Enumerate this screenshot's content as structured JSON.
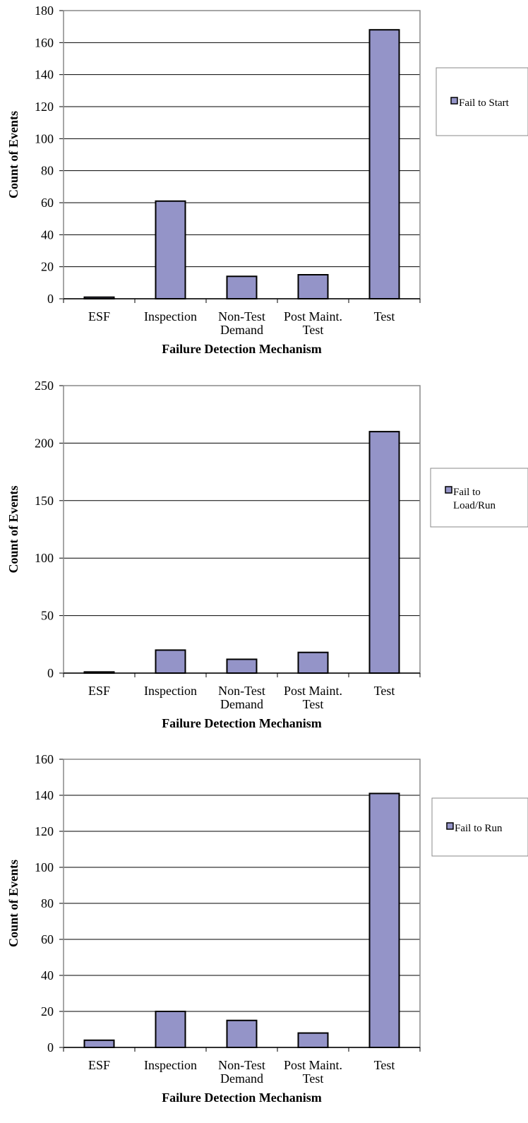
{
  "chart_data": [
    {
      "type": "bar",
      "x_label": "Failure Detection Mechanism",
      "y_label": "Count of Events",
      "categories": [
        "ESF",
        "Inspection",
        "Non-Test Demand",
        "Post Maint. Test",
        "Test"
      ],
      "series": [
        {
          "name": "Fail to Start",
          "color": "#9494c8",
          "values": [
            1,
            61,
            14,
            15,
            168
          ]
        }
      ],
      "ylim": [
        0,
        180
      ],
      "yticks": [
        0,
        20,
        40,
        60,
        80,
        100,
        120,
        140,
        160,
        180
      ],
      "grid": true,
      "legend": "right"
    },
    {
      "type": "bar",
      "x_label": "Failure Detection Mechanism",
      "y_label": "Count of Events",
      "categories": [
        "ESF",
        "Inspection",
        "Non-Test Demand",
        "Post Maint. Test",
        "Test"
      ],
      "series": [
        {
          "name": "Fail to Load/Run",
          "color": "#9494c8",
          "values": [
            1,
            20,
            12,
            18,
            210
          ]
        }
      ],
      "ylim": [
        0,
        250
      ],
      "yticks": [
        0,
        50,
        100,
        150,
        200,
        250
      ],
      "grid": true,
      "legend": "right"
    },
    {
      "type": "bar",
      "x_label": "Failure Detection Mechanism",
      "y_label": "Count of Events",
      "categories": [
        "ESF",
        "Inspection",
        "Non-Test Demand",
        "Post Maint. Test",
        "Test"
      ],
      "series": [
        {
          "name": "Fail to Run",
          "color": "#9494c8",
          "values": [
            4,
            20,
            15,
            8,
            141
          ]
        }
      ],
      "ylim": [
        0,
        160
      ],
      "yticks": [
        0,
        20,
        40,
        60,
        80,
        100,
        120,
        140,
        160
      ],
      "grid": true,
      "legend": "right"
    }
  ]
}
